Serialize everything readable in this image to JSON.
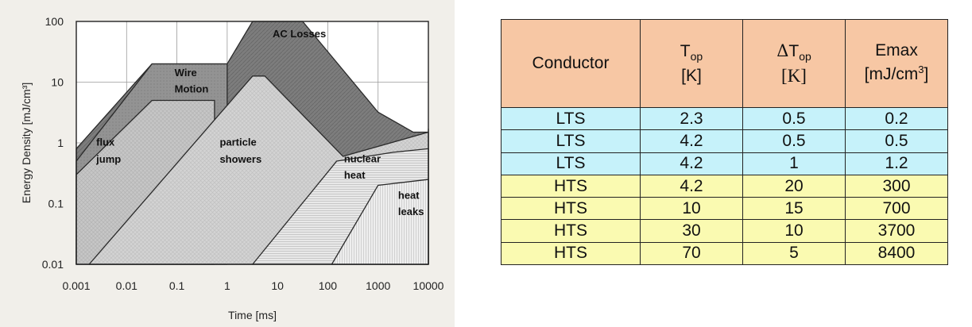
{
  "chart_data": {
    "type": "area",
    "xscale": "log",
    "yscale": "log",
    "xlim": [
      0.001,
      10000
    ],
    "ylim": [
      0.01,
      100
    ],
    "xlabel": "Time [ms]",
    "ylabel": "Energy Density [mJ/cm³]",
    "xticks": [
      "0.001",
      "0.01",
      "0.1",
      "1",
      "10",
      "100",
      "1000",
      "10000"
    ],
    "yticks": [
      "0.01",
      "0.1",
      "1",
      "10",
      "100"
    ],
    "grid": true,
    "regions": [
      {
        "name": "AC Losses",
        "fill": "#7a7a7a",
        "points": [
          [
            0.001,
            0.8
          ],
          [
            0.032,
            20
          ],
          [
            1,
            20
          ],
          [
            3.2,
            100
          ],
          [
            31.6,
            100
          ],
          [
            1000,
            3.2
          ],
          [
            5000,
            1.5
          ],
          [
            10000,
            1.5
          ],
          [
            10000,
            1.7
          ]
        ]
      },
      {
        "name": "Wire Motion",
        "fill": "#8f8f8f",
        "points": [
          [
            0.001,
            0.5
          ],
          [
            0.032,
            20
          ],
          [
            1,
            20
          ]
        ]
      },
      {
        "name": "flux jump",
        "fill": "#c9c9c9",
        "points": [
          [
            0.001,
            0.3
          ],
          [
            0.032,
            5
          ],
          [
            0.56,
            5
          ]
        ]
      },
      {
        "name": "particle showers",
        "fill": "#d2d2d2",
        "points": [
          [
            0.0018,
            0.01
          ],
          [
            3.2,
            12.6
          ],
          [
            5.6,
            12.6
          ],
          [
            200,
            0.6
          ],
          [
            10000,
            1.5
          ]
        ]
      },
      {
        "name": "nuclear heat",
        "fill": "#e6e6e6",
        "points": [
          [
            3.2,
            0.01
          ],
          [
            150,
            0.5
          ],
          [
            2000,
            0.7
          ],
          [
            10000,
            0.8
          ]
        ]
      },
      {
        "name": "heat leaks",
        "fill": "#efefef",
        "points": [
          [
            120,
            0.01
          ],
          [
            1000,
            0.2
          ],
          [
            10000,
            0.25
          ]
        ]
      }
    ],
    "annotations": [
      "AC Losses",
      "Wire Motion",
      "flux jump",
      "particle showers",
      "nuclear heat",
      "heat leaks"
    ]
  },
  "table": {
    "headers": {
      "conductor": "Conductor",
      "top_main": "T",
      "top_sub": "op",
      "top_unit": "[K]",
      "dtop_delta": "Δ",
      "dtop_main": "T",
      "dtop_sub": "op",
      "dtop_unit": "[K]",
      "emax": "Emax",
      "emax_unit": "[mJ/cm",
      "emax_sup": "3",
      "emax_close": "]"
    },
    "rows": [
      {
        "conductor": "LTS",
        "top": "2.3",
        "dtop": "0.5",
        "emax": "0.2"
      },
      {
        "conductor": "LTS",
        "top": "4.2",
        "dtop": "0.5",
        "emax": "0.5"
      },
      {
        "conductor": "LTS",
        "top": "4.2",
        "dtop": "1",
        "emax": "1.2"
      },
      {
        "conductor": "HTS",
        "top": "4.2",
        "dtop": "20",
        "emax": "300"
      },
      {
        "conductor": "HTS",
        "top": "10",
        "dtop": "15",
        "emax": "700"
      },
      {
        "conductor": "HTS",
        "top": "30",
        "dtop": "10",
        "emax": "3700"
      },
      {
        "conductor": "HTS",
        "top": "70",
        "dtop": "5",
        "emax": "8400"
      }
    ],
    "colors": {
      "header": "#f7c7a4",
      "LTS": "#c6f2fa",
      "HTS": "#fafab1"
    }
  }
}
